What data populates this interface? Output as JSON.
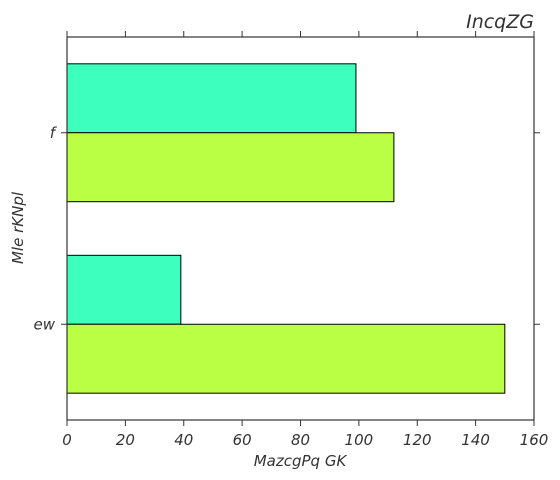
{
  "chart_data": {
    "type": "bar",
    "orientation": "horizontal",
    "title": "IncqZG",
    "xlabel": "MazcgPq GK",
    "ylabel": "Mle rKNpl",
    "categories": [
      "f",
      "ew"
    ],
    "series": [
      {
        "values": [
          99,
          39
        ],
        "color": "#3dffbe"
      },
      {
        "values": [
          112,
          150
        ],
        "color": "#bbff44"
      }
    ],
    "xlim": [
      0,
      160
    ],
    "xticks": [
      0,
      20,
      40,
      60,
      80,
      100,
      120,
      140,
      160
    ],
    "grid": false,
    "legend": "none"
  }
}
